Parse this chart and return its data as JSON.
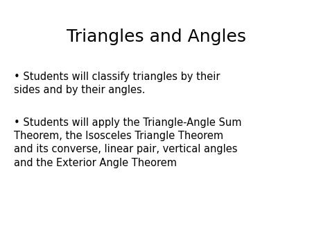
{
  "title": "Triangles and Angles",
  "title_fontsize": 18,
  "title_color": "#000000",
  "background_color": "#ffffff",
  "bullet1_line1": "• Students will classify triangles by their",
  "bullet1_line2": "sides and by their angles.",
  "bullet2_line1": "• Students will apply the Triangle-Angle Sum",
  "bullet2_line2": "Theorem, the Isosceles Triangle Theorem",
  "bullet2_line3": "and its converse, linear pair, vertical angles",
  "bullet2_line4": "and the Exterior Angle Theorem",
  "body_fontsize": 10.5,
  "body_color": "#000000",
  "font_family": "DejaVu Sans"
}
